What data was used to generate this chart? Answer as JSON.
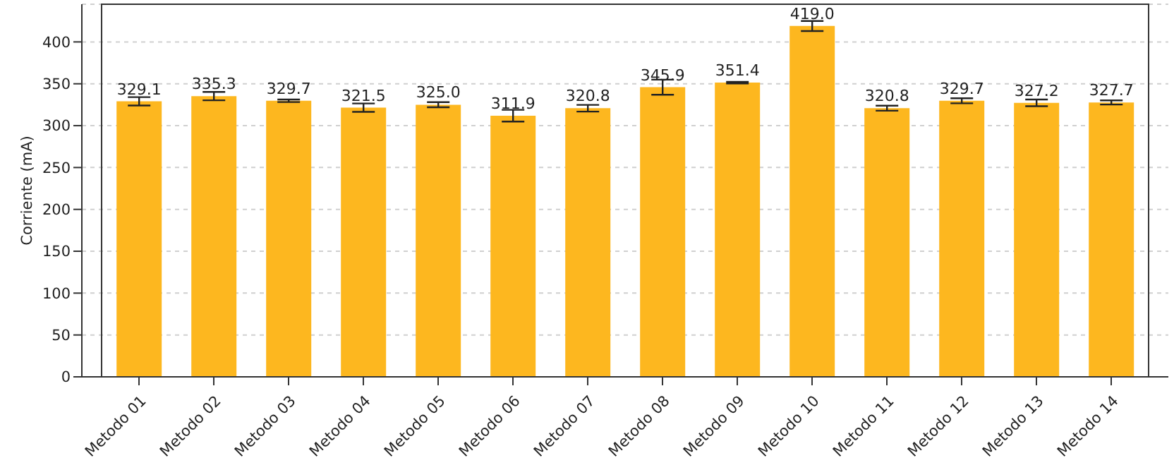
{
  "chart_data": {
    "type": "bar",
    "ylabel": "Corriente (mA)",
    "categories": [
      "Metodo 01",
      "Metodo 02",
      "Metodo 03",
      "Metodo 04",
      "Metodo 05",
      "Metodo 06",
      "Metodo 07",
      "Metodo 08",
      "Metodo 09",
      "Metodo 10",
      "Metodo 11",
      "Metodo 12",
      "Metodo 13",
      "Metodo 14"
    ],
    "values": [
      329.1,
      335.3,
      329.7,
      321.5,
      325.0,
      311.9,
      320.8,
      345.9,
      351.4,
      419.0,
      320.8,
      329.7,
      327.2,
      327.7
    ],
    "errors": [
      5,
      5,
      1.5,
      5,
      3,
      7,
      4,
      9,
      1,
      6,
      3,
      3,
      4,
      2.5
    ],
    "value_labels": [
      "329.1",
      "335.3",
      "329.7",
      "321.5",
      "325.0",
      "311.9",
      "320.8",
      "345.9",
      "351.4",
      "419.0",
      "320.8",
      "329.7",
      "327.2",
      "327.7"
    ],
    "color": "#fdb71f",
    "ylim": [
      0,
      445
    ],
    "yticks": [
      0,
      50,
      100,
      150,
      200,
      250,
      300,
      350,
      400
    ],
    "grid": "y"
  }
}
